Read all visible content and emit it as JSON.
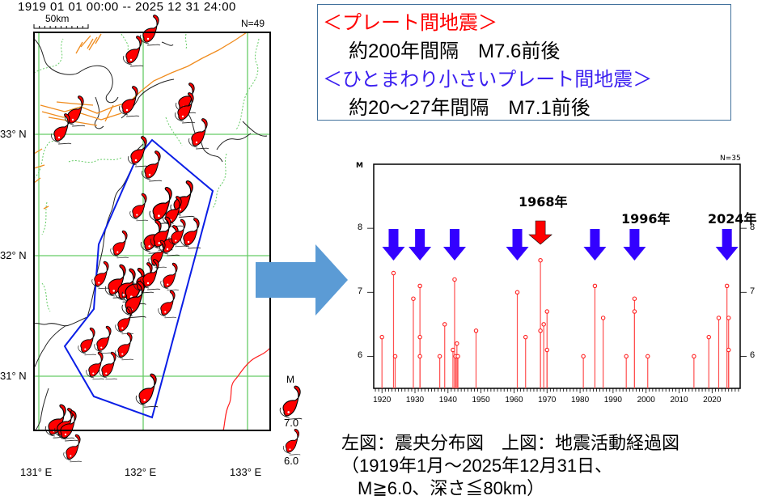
{
  "map": {
    "header": "1919 01 01 00:00 -- 2025 12 31 24:00",
    "scale_label": "50km",
    "count_label": "N=49",
    "lat_labels": [
      "33° N",
      "32° N",
      "31° N"
    ],
    "lon_labels": [
      "131° E",
      "132° E",
      "133° E"
    ],
    "legend": {
      "title": "M",
      "values": [
        "7.0",
        "6.0"
      ]
    },
    "colors": {
      "grid": "#66cc66",
      "region": "#0a1ee6",
      "fault": "#f08c1e",
      "marker": "#ff0000",
      "trench": "#ff2020"
    }
  },
  "arrow": {
    "icon": "right-arrow-icon",
    "color": "#5b9bd5"
  },
  "info_box": {
    "line1": "＜プレート間地震＞",
    "line2": "約200年間隔　M7.6前後",
    "line3": "＜ひとまわり小さいプレート間地震＞",
    "line4": "約20～27年間隔　M7.1前後",
    "colors": {
      "line1": "#ff0000",
      "line3": "#3a1ef0",
      "border": "#41719c"
    }
  },
  "chart_data": {
    "type": "stem",
    "title": "",
    "xlabel": "",
    "ylabel": "M",
    "count_label": "N=35",
    "xlim": [
      1917.5,
      2028.5
    ],
    "ylim": [
      5.5,
      9.0
    ],
    "x_ticks": [
      1920,
      1930,
      1940,
      1950,
      1960,
      1970,
      1980,
      1990,
      2000,
      2010,
      2020
    ],
    "x_tick_labels": [
      "1920",
      "1930",
      "1940",
      "1950",
      "1960",
      "1970",
      "1980",
      "1990",
      "2000",
      "2010",
      "2020"
    ],
    "y_ticks": [
      6,
      7,
      8
    ],
    "y_tick_labels": [
      "6",
      "7",
      "8"
    ],
    "grid": false,
    "events": [
      {
        "year": 1920.0,
        "m": 6.3
      },
      {
        "year": 1923.5,
        "m": 7.3
      },
      {
        "year": 1924.0,
        "m": 6.0
      },
      {
        "year": 1929.5,
        "m": 6.9
      },
      {
        "year": 1931.5,
        "m": 7.1
      },
      {
        "year": 1931.5,
        "m": 6.3
      },
      {
        "year": 1931.5,
        "m": 6.0
      },
      {
        "year": 1937.5,
        "m": 6.0
      },
      {
        "year": 1939.0,
        "m": 6.5
      },
      {
        "year": 1941.5,
        "m": 6.1
      },
      {
        "year": 1942.0,
        "m": 7.2
      },
      {
        "year": 1942.3,
        "m": 6.0
      },
      {
        "year": 1942.7,
        "m": 6.2
      },
      {
        "year": 1943.0,
        "m": 6.0
      },
      {
        "year": 1948.5,
        "m": 6.4
      },
      {
        "year": 1961.0,
        "m": 7.0
      },
      {
        "year": 1963.5,
        "m": 6.3
      },
      {
        "year": 1968.0,
        "m": 7.5
      },
      {
        "year": 1968.0,
        "m": 6.4
      },
      {
        "year": 1969.0,
        "m": 6.5
      },
      {
        "year": 1970.0,
        "m": 6.7
      },
      {
        "year": 1970.0,
        "m": 6.1
      },
      {
        "year": 1981.0,
        "m": 6.0
      },
      {
        "year": 1984.5,
        "m": 7.1
      },
      {
        "year": 1987.0,
        "m": 6.6
      },
      {
        "year": 1994.0,
        "m": 6.0
      },
      {
        "year": 1996.5,
        "m": 6.9
      },
      {
        "year": 1996.5,
        "m": 6.7
      },
      {
        "year": 2000.5,
        "m": 6.0
      },
      {
        "year": 2014.5,
        "m": 6.0
      },
      {
        "year": 2019.0,
        "m": 6.3
      },
      {
        "year": 2022.0,
        "m": 6.6
      },
      {
        "year": 2024.5,
        "m": 7.1
      },
      {
        "year": 2025.0,
        "m": 6.6
      },
      {
        "year": 2025.0,
        "m": 6.1
      }
    ],
    "arrows": [
      {
        "year": 1923.5,
        "kind": "smaller-interplate",
        "color": "#3300ff"
      },
      {
        "year": 1931.5,
        "kind": "smaller-interplate",
        "color": "#3300ff"
      },
      {
        "year": 1942.0,
        "kind": "smaller-interplate",
        "color": "#3300ff"
      },
      {
        "year": 1961.0,
        "kind": "smaller-interplate",
        "color": "#3300ff"
      },
      {
        "year": 1968.0,
        "kind": "interplate",
        "color": "#ff0000"
      },
      {
        "year": 1984.5,
        "kind": "smaller-interplate",
        "color": "#3300ff"
      },
      {
        "year": 1996.5,
        "kind": "smaller-interplate",
        "color": "#3300ff"
      },
      {
        "year": 2024.5,
        "kind": "smaller-interplate",
        "color": "#3300ff"
      }
    ],
    "annotations": [
      "1968年",
      "1996年",
      "2024年"
    ],
    "stem_color": "#ff5050"
  },
  "caption": {
    "line1": "左図：震央分布図　上図：地震活動経過図",
    "line2": "（1919年1月～2025年12月31日、",
    "line3": "M≧6.0、深さ≦80km）"
  }
}
